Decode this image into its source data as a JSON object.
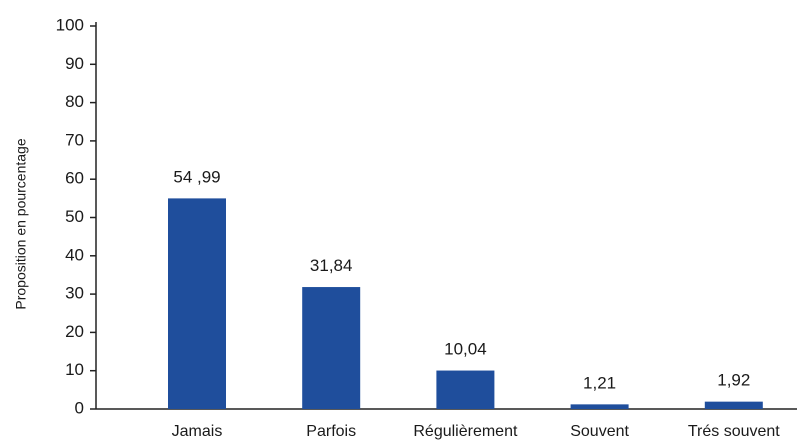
{
  "chart_data": {
    "type": "bar",
    "title": "",
    "xlabel": "",
    "ylabel": "Proposition en pourcentage",
    "categories": [
      "Jamais",
      "Parfois",
      "Régulièrement",
      "Souvent",
      "Trés souvent"
    ],
    "values": [
      54.99,
      31.84,
      10.04,
      1.21,
      1.92
    ],
    "data_labels": [
      "54 ,99",
      "31,84",
      "10,04",
      "1,21",
      "1,92"
    ],
    "ylim": [
      0,
      100
    ],
    "yticks": [
      "0",
      "10",
      "20",
      "30",
      "40",
      "50",
      "60",
      "70",
      "80",
      "90",
      "100"
    ],
    "grid": false,
    "legend": "none",
    "bar_color": "#1f4e9c"
  }
}
